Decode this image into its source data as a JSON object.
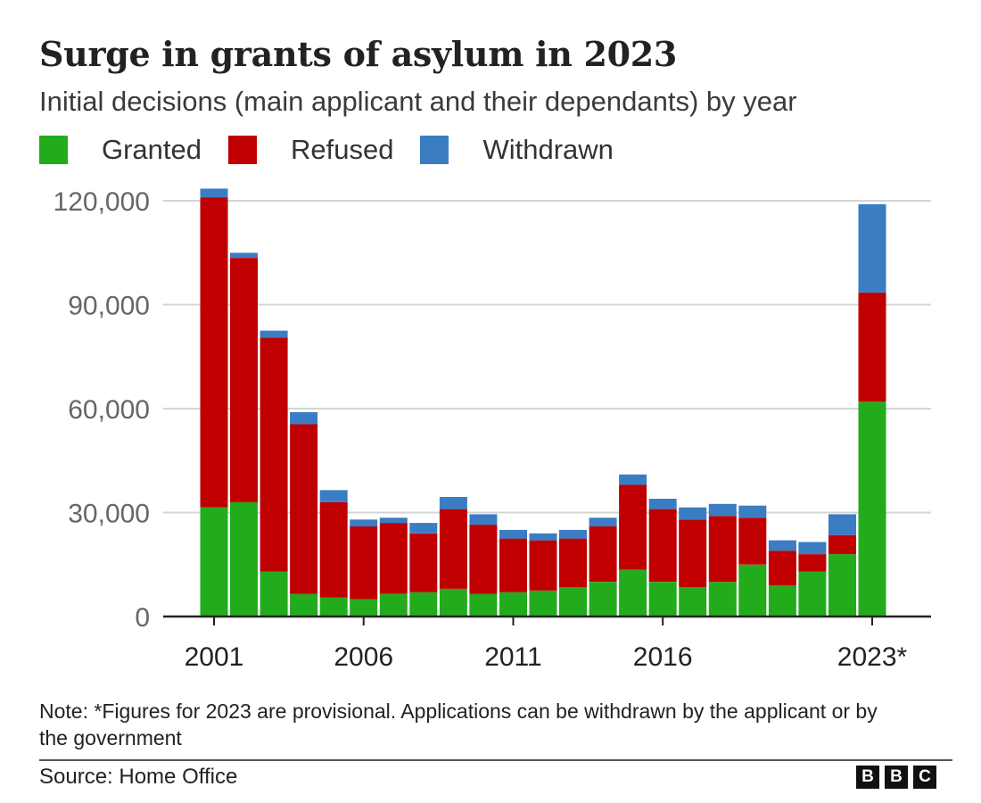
{
  "header": {
    "title": "Surge in grants of asylum in 2023",
    "subtitle": "Initial decisions (main applicant and their dependants) by year"
  },
  "legend": [
    {
      "label": "Granted",
      "color": "#22ac1c"
    },
    {
      "label": "Refused",
      "color": "#c00000"
    },
    {
      "label": "Withdrawn",
      "color": "#3b7dc3"
    }
  ],
  "chart_data": {
    "type": "bar",
    "stacked": true,
    "title": "Surge in grants of asylum in 2023",
    "subtitle": "Initial decisions (main applicant and their dependants) by year",
    "categories": [
      "2001",
      "2002",
      "2003",
      "2004",
      "2005",
      "2006",
      "2007",
      "2008",
      "2009",
      "2010",
      "2011",
      "2012",
      "2013",
      "2014",
      "2015",
      "2016",
      "2017",
      "2018",
      "2019",
      "2020",
      "2021",
      "2022",
      "2023*"
    ],
    "x_tick_labels": [
      {
        "label": "2001",
        "category": "2001"
      },
      {
        "label": "2006",
        "category": "2006"
      },
      {
        "label": "2011",
        "category": "2011"
      },
      {
        "label": "2016",
        "category": "2016"
      },
      {
        "label": "2023*",
        "category": "2023*"
      }
    ],
    "y_ticks": [
      0,
      30000,
      60000,
      90000,
      120000
    ],
    "y_tick_labels": [
      "0",
      "30,000",
      "60,000",
      "90,000",
      "120,000"
    ],
    "ylim": [
      0,
      122000
    ],
    "grid": true,
    "legend_position": "top-left",
    "series": [
      {
        "name": "Granted",
        "color": "#22ac1c",
        "values": [
          31500,
          33000,
          13000,
          6500,
          5500,
          5000,
          6500,
          7000,
          8000,
          6500,
          7000,
          7500,
          8500,
          10000,
          13500,
          10000,
          8500,
          10000,
          15000,
          9000,
          13000,
          18000,
          62000
        ]
      },
      {
        "name": "Refused",
        "color": "#c00000",
        "values": [
          89500,
          70500,
          67500,
          49000,
          27500,
          21000,
          20500,
          17000,
          23000,
          20000,
          15500,
          14500,
          14000,
          16000,
          24500,
          21000,
          19500,
          19000,
          13500,
          10000,
          5000,
          5500,
          31500
        ]
      },
      {
        "name": "Withdrawn",
        "color": "#3b7dc3",
        "values": [
          2500,
          1500,
          2000,
          3500,
          3500,
          2000,
          1500,
          3000,
          3500,
          3000,
          2500,
          2000,
          2500,
          2500,
          3000,
          3000,
          3500,
          3500,
          3500,
          3000,
          3500,
          6000,
          25500
        ]
      }
    ]
  },
  "footer": {
    "note": "Note: *Figures for 2023 are provisional. Applications can be withdrawn by the applicant or by the government",
    "source": "Source: Home Office",
    "brand_letters": [
      "B",
      "B",
      "C"
    ]
  }
}
